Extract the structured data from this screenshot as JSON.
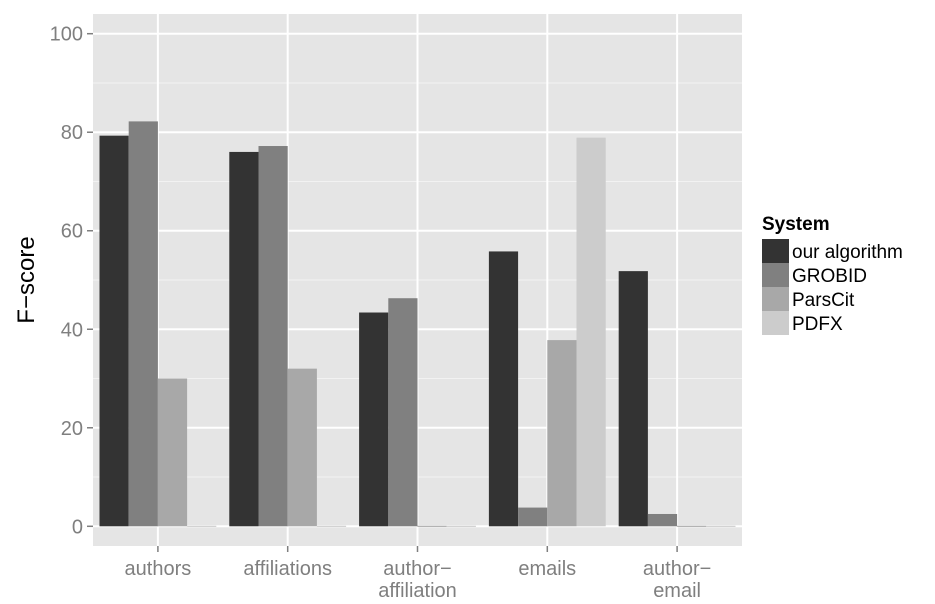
{
  "chart_data": {
    "type": "bar",
    "title": "",
    "xlabel": "",
    "ylabel": "F−score",
    "ylim": [
      -4,
      104
    ],
    "yticks": [
      0,
      20,
      40,
      60,
      80,
      100
    ],
    "grid": true,
    "legend_position": "right",
    "legend_title": "System",
    "categories": [
      [
        "authors"
      ],
      [
        "affiliations"
      ],
      [
        "author−",
        "affiliation"
      ],
      [
        "emails"
      ],
      [
        "author−",
        "email"
      ]
    ],
    "series": [
      {
        "name": "our algorithm",
        "color": "#333333",
        "values": [
          79.3,
          76.0,
          43.4,
          55.8,
          51.8
        ]
      },
      {
        "name": "GROBID",
        "color": "#808080",
        "values": [
          82.2,
          77.2,
          46.3,
          3.8,
          2.5
        ]
      },
      {
        "name": "ParsCit",
        "color": "#a8a8a8",
        "values": [
          30.0,
          32.0,
          0,
          37.8,
          0
        ]
      },
      {
        "name": "PDFX",
        "color": "#cccccc",
        "values": [
          0,
          0,
          0,
          78.9,
          0
        ]
      }
    ]
  }
}
